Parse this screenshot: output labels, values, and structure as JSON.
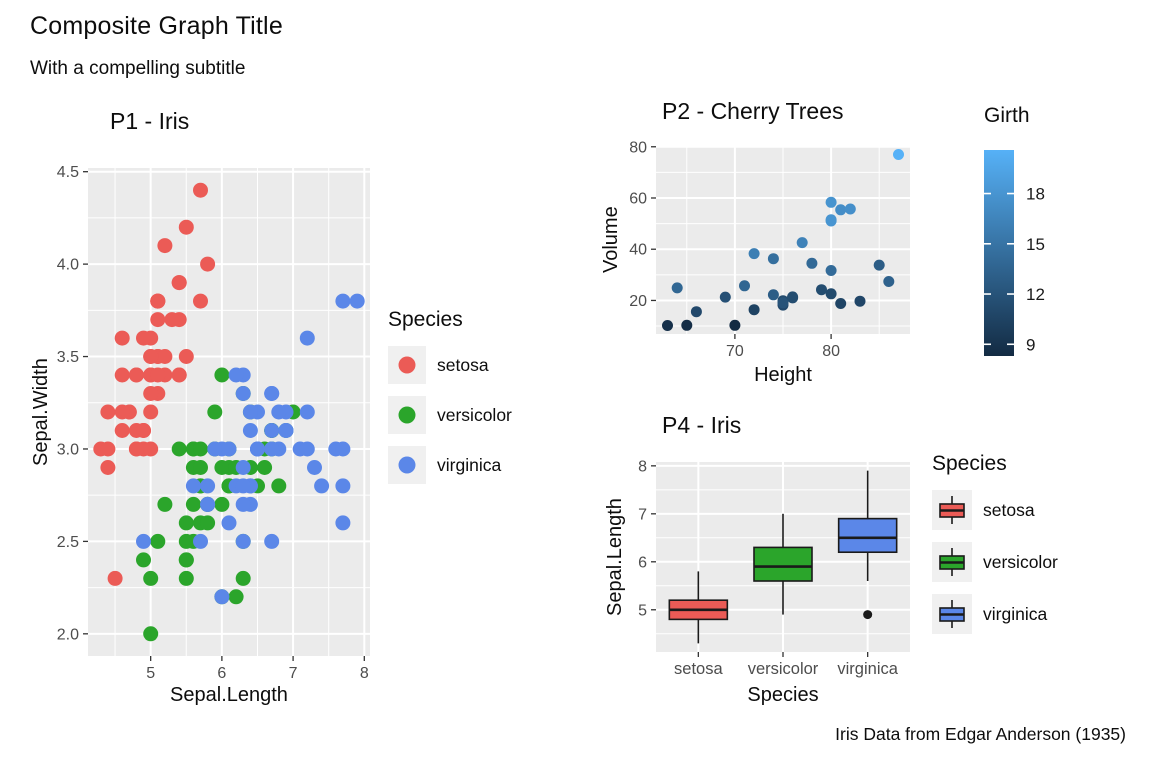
{
  "page": {
    "title": "Composite Graph Title",
    "subtitle": "With a compelling subtitle",
    "caption": "Iris Data from Edgar Anderson (1935)"
  },
  "chart_data": [
    {
      "type": "scatter",
      "title": "P1 - Iris",
      "xlabel": "Sepal.Length",
      "ylabel": "Sepal.Width",
      "legend_title": "Species",
      "xlim": [
        4.12,
        8.08
      ],
      "ylim": [
        1.88,
        4.52
      ],
      "xticks": [
        "5",
        "6",
        "7",
        "8"
      ],
      "yticks": [
        "2.0",
        "2.5",
        "3.0",
        "3.5",
        "4.0",
        "4.5"
      ],
      "grid": "on",
      "legend_position": "right",
      "series": [
        {
          "name": "setosa",
          "color": "#EB5B56",
          "points": [
            [
              5.1,
              3.5
            ],
            [
              4.9,
              3.0
            ],
            [
              4.7,
              3.2
            ],
            [
              4.6,
              3.1
            ],
            [
              5.0,
              3.6
            ],
            [
              5.4,
              3.9
            ],
            [
              4.6,
              3.4
            ],
            [
              5.0,
              3.4
            ],
            [
              4.4,
              2.9
            ],
            [
              4.9,
              3.1
            ],
            [
              5.4,
              3.7
            ],
            [
              4.8,
              3.4
            ],
            [
              4.8,
              3.0
            ],
            [
              4.3,
              3.0
            ],
            [
              5.8,
              4.0
            ],
            [
              5.7,
              4.4
            ],
            [
              5.4,
              3.9
            ],
            [
              5.1,
              3.5
            ],
            [
              5.7,
              3.8
            ],
            [
              5.1,
              3.8
            ],
            [
              5.4,
              3.4
            ],
            [
              5.1,
              3.7
            ],
            [
              4.6,
              3.6
            ],
            [
              5.1,
              3.3
            ],
            [
              4.8,
              3.4
            ],
            [
              5.0,
              3.0
            ],
            [
              5.0,
              3.4
            ],
            [
              5.2,
              3.5
            ],
            [
              5.2,
              3.4
            ],
            [
              4.7,
              3.2
            ],
            [
              4.8,
              3.1
            ],
            [
              5.4,
              3.4
            ],
            [
              5.2,
              4.1
            ],
            [
              5.5,
              4.2
            ],
            [
              4.9,
              3.1
            ],
            [
              5.0,
              3.2
            ],
            [
              5.5,
              3.5
            ],
            [
              4.9,
              3.6
            ],
            [
              4.4,
              3.0
            ],
            [
              5.1,
              3.4
            ],
            [
              5.0,
              3.5
            ],
            [
              4.5,
              2.3
            ],
            [
              4.4,
              3.2
            ],
            [
              5.0,
              3.5
            ],
            [
              5.1,
              3.8
            ],
            [
              4.8,
              3.0
            ],
            [
              5.1,
              3.8
            ],
            [
              4.6,
              3.2
            ],
            [
              5.3,
              3.7
            ],
            [
              5.0,
              3.3
            ]
          ]
        },
        {
          "name": "versicolor",
          "color": "#2BA52B",
          "points": [
            [
              7.0,
              3.2
            ],
            [
              6.4,
              3.2
            ],
            [
              6.9,
              3.1
            ],
            [
              5.5,
              2.3
            ],
            [
              6.5,
              2.8
            ],
            [
              5.7,
              2.8
            ],
            [
              6.3,
              3.3
            ],
            [
              4.9,
              2.4
            ],
            [
              6.6,
              2.9
            ],
            [
              5.2,
              2.7
            ],
            [
              5.0,
              2.0
            ],
            [
              5.9,
              3.0
            ],
            [
              6.0,
              2.2
            ],
            [
              6.1,
              2.9
            ],
            [
              5.6,
              2.9
            ],
            [
              6.7,
              3.1
            ],
            [
              5.6,
              3.0
            ],
            [
              5.8,
              2.7
            ],
            [
              6.2,
              2.2
            ],
            [
              5.6,
              2.5
            ],
            [
              5.9,
              3.2
            ],
            [
              6.1,
              2.8
            ],
            [
              6.3,
              2.5
            ],
            [
              6.1,
              2.8
            ],
            [
              6.4,
              2.9
            ],
            [
              6.6,
              3.0
            ],
            [
              6.8,
              2.8
            ],
            [
              6.7,
              3.0
            ],
            [
              6.0,
              2.9
            ],
            [
              5.7,
              2.6
            ],
            [
              5.5,
              2.4
            ],
            [
              5.5,
              2.4
            ],
            [
              5.8,
              2.7
            ],
            [
              6.0,
              2.7
            ],
            [
              5.4,
              3.0
            ],
            [
              6.0,
              3.4
            ],
            [
              6.7,
              3.1
            ],
            [
              6.3,
              2.3
            ],
            [
              5.6,
              3.0
            ],
            [
              5.5,
              2.5
            ],
            [
              5.5,
              2.6
            ],
            [
              6.1,
              3.0
            ],
            [
              5.8,
              2.6
            ],
            [
              5.0,
              2.3
            ],
            [
              5.6,
              2.7
            ],
            [
              5.7,
              3.0
            ],
            [
              5.7,
              2.9
            ],
            [
              6.2,
              2.9
            ],
            [
              5.1,
              2.5
            ],
            [
              5.7,
              2.8
            ]
          ]
        },
        {
          "name": "virginica",
          "color": "#5B87E8",
          "points": [
            [
              6.3,
              3.3
            ],
            [
              5.8,
              2.7
            ],
            [
              7.1,
              3.0
            ],
            [
              6.3,
              2.9
            ],
            [
              6.5,
              3.0
            ],
            [
              7.6,
              3.0
            ],
            [
              4.9,
              2.5
            ],
            [
              7.3,
              2.9
            ],
            [
              6.7,
              2.5
            ],
            [
              7.2,
              3.6
            ],
            [
              6.5,
              3.2
            ],
            [
              6.4,
              2.7
            ],
            [
              6.8,
              3.0
            ],
            [
              5.7,
              2.5
            ],
            [
              5.8,
              2.8
            ],
            [
              6.4,
              3.2
            ],
            [
              6.5,
              3.0
            ],
            [
              7.7,
              3.8
            ],
            [
              7.7,
              2.6
            ],
            [
              6.0,
              2.2
            ],
            [
              6.9,
              3.2
            ],
            [
              5.6,
              2.8
            ],
            [
              7.7,
              2.8
            ],
            [
              6.3,
              2.7
            ],
            [
              6.7,
              3.3
            ],
            [
              7.2,
              3.2
            ],
            [
              6.2,
              2.8
            ],
            [
              6.1,
              3.0
            ],
            [
              6.4,
              2.8
            ],
            [
              7.2,
              3.0
            ],
            [
              7.4,
              2.8
            ],
            [
              7.9,
              3.8
            ],
            [
              6.4,
              2.8
            ],
            [
              6.3,
              2.8
            ],
            [
              6.1,
              2.6
            ],
            [
              7.7,
              3.0
            ],
            [
              6.3,
              3.4
            ],
            [
              6.4,
              3.1
            ],
            [
              6.0,
              3.0
            ],
            [
              6.9,
              3.1
            ],
            [
              6.7,
              3.1
            ],
            [
              6.9,
              3.1
            ],
            [
              5.8,
              2.7
            ],
            [
              6.8,
              3.2
            ],
            [
              6.7,
              3.3
            ],
            [
              6.7,
              3.0
            ],
            [
              6.3,
              2.5
            ],
            [
              6.5,
              3.0
            ],
            [
              6.2,
              3.4
            ],
            [
              5.9,
              3.0
            ]
          ]
        }
      ]
    },
    {
      "type": "scatter",
      "title": "P2 - Cherry Trees",
      "xlabel": "Height",
      "ylabel": "Volume",
      "xlim": [
        61.8,
        88.2
      ],
      "ylim": [
        6.9,
        80.3
      ],
      "xticks": [
        "70",
        "80"
      ],
      "yticks": [
        "20",
        "40",
        "60",
        "80"
      ],
      "grid": "on",
      "color": {
        "label": "Girth",
        "low": "#132B43",
        "high": "#56B1F7",
        "domain": [
          8.3,
          20.6
        ],
        "ticks": [
          "9",
          "12",
          "15",
          "18"
        ],
        "legend_position": "right"
      },
      "points": [
        [
          70,
          10.3,
          8.3
        ],
        [
          65,
          10.3,
          8.6
        ],
        [
          63,
          10.2,
          8.8
        ],
        [
          72,
          16.4,
          10.5
        ],
        [
          81,
          18.8,
          10.7
        ],
        [
          83,
          19.7,
          10.8
        ],
        [
          66,
          15.6,
          11.0
        ],
        [
          75,
          18.2,
          11.0
        ],
        [
          80,
          22.6,
          11.1
        ],
        [
          75,
          19.9,
          11.2
        ],
        [
          79,
          24.2,
          11.3
        ],
        [
          76,
          21.0,
          11.4
        ],
        [
          76,
          21.4,
          11.4
        ],
        [
          69,
          21.3,
          11.7
        ],
        [
          75,
          19.1,
          12.0
        ],
        [
          74,
          22.2,
          12.9
        ],
        [
          85,
          33.8,
          12.9
        ],
        [
          86,
          27.4,
          13.3
        ],
        [
          71,
          25.7,
          13.7
        ],
        [
          64,
          24.9,
          13.8
        ],
        [
          78,
          34.5,
          14.0
        ],
        [
          80,
          31.7,
          14.2
        ],
        [
          74,
          36.3,
          14.5
        ],
        [
          72,
          38.3,
          16.0
        ],
        [
          77,
          42.6,
          16.3
        ],
        [
          81,
          55.4,
          17.3
        ],
        [
          82,
          55.7,
          17.5
        ],
        [
          80,
          58.3,
          17.9
        ],
        [
          80,
          51.5,
          18.0
        ],
        [
          80,
          51.0,
          18.0
        ],
        [
          87,
          77.0,
          20.6
        ]
      ]
    },
    {
      "type": "boxplot",
      "title": "P4 - Iris",
      "xlabel": "Species",
      "ylabel": "Sepal.Length",
      "legend_title": "Species",
      "ylim": [
        4.12,
        8.08
      ],
      "yticks": [
        "5",
        "6",
        "7",
        "8"
      ],
      "grid": "on",
      "legend_position": "right",
      "categories": [
        "setosa",
        "versicolor",
        "virginica"
      ],
      "groups": [
        {
          "name": "setosa",
          "color": "#EB5B56",
          "stats": {
            "whisker_low": 4.3,
            "q1": 4.8,
            "median": 5.0,
            "q3": 5.2,
            "whisker_high": 5.8,
            "outliers": []
          }
        },
        {
          "name": "versicolor",
          "color": "#2BA52B",
          "stats": {
            "whisker_low": 4.9,
            "q1": 5.6,
            "median": 5.9,
            "q3": 6.3,
            "whisker_high": 7.0,
            "outliers": []
          }
        },
        {
          "name": "virginica",
          "color": "#5B87E8",
          "stats": {
            "whisker_low": 5.6,
            "q1": 6.2,
            "median": 6.5,
            "q3": 6.9,
            "whisker_high": 7.9,
            "outliers": [
              4.9
            ]
          }
        }
      ]
    }
  ]
}
